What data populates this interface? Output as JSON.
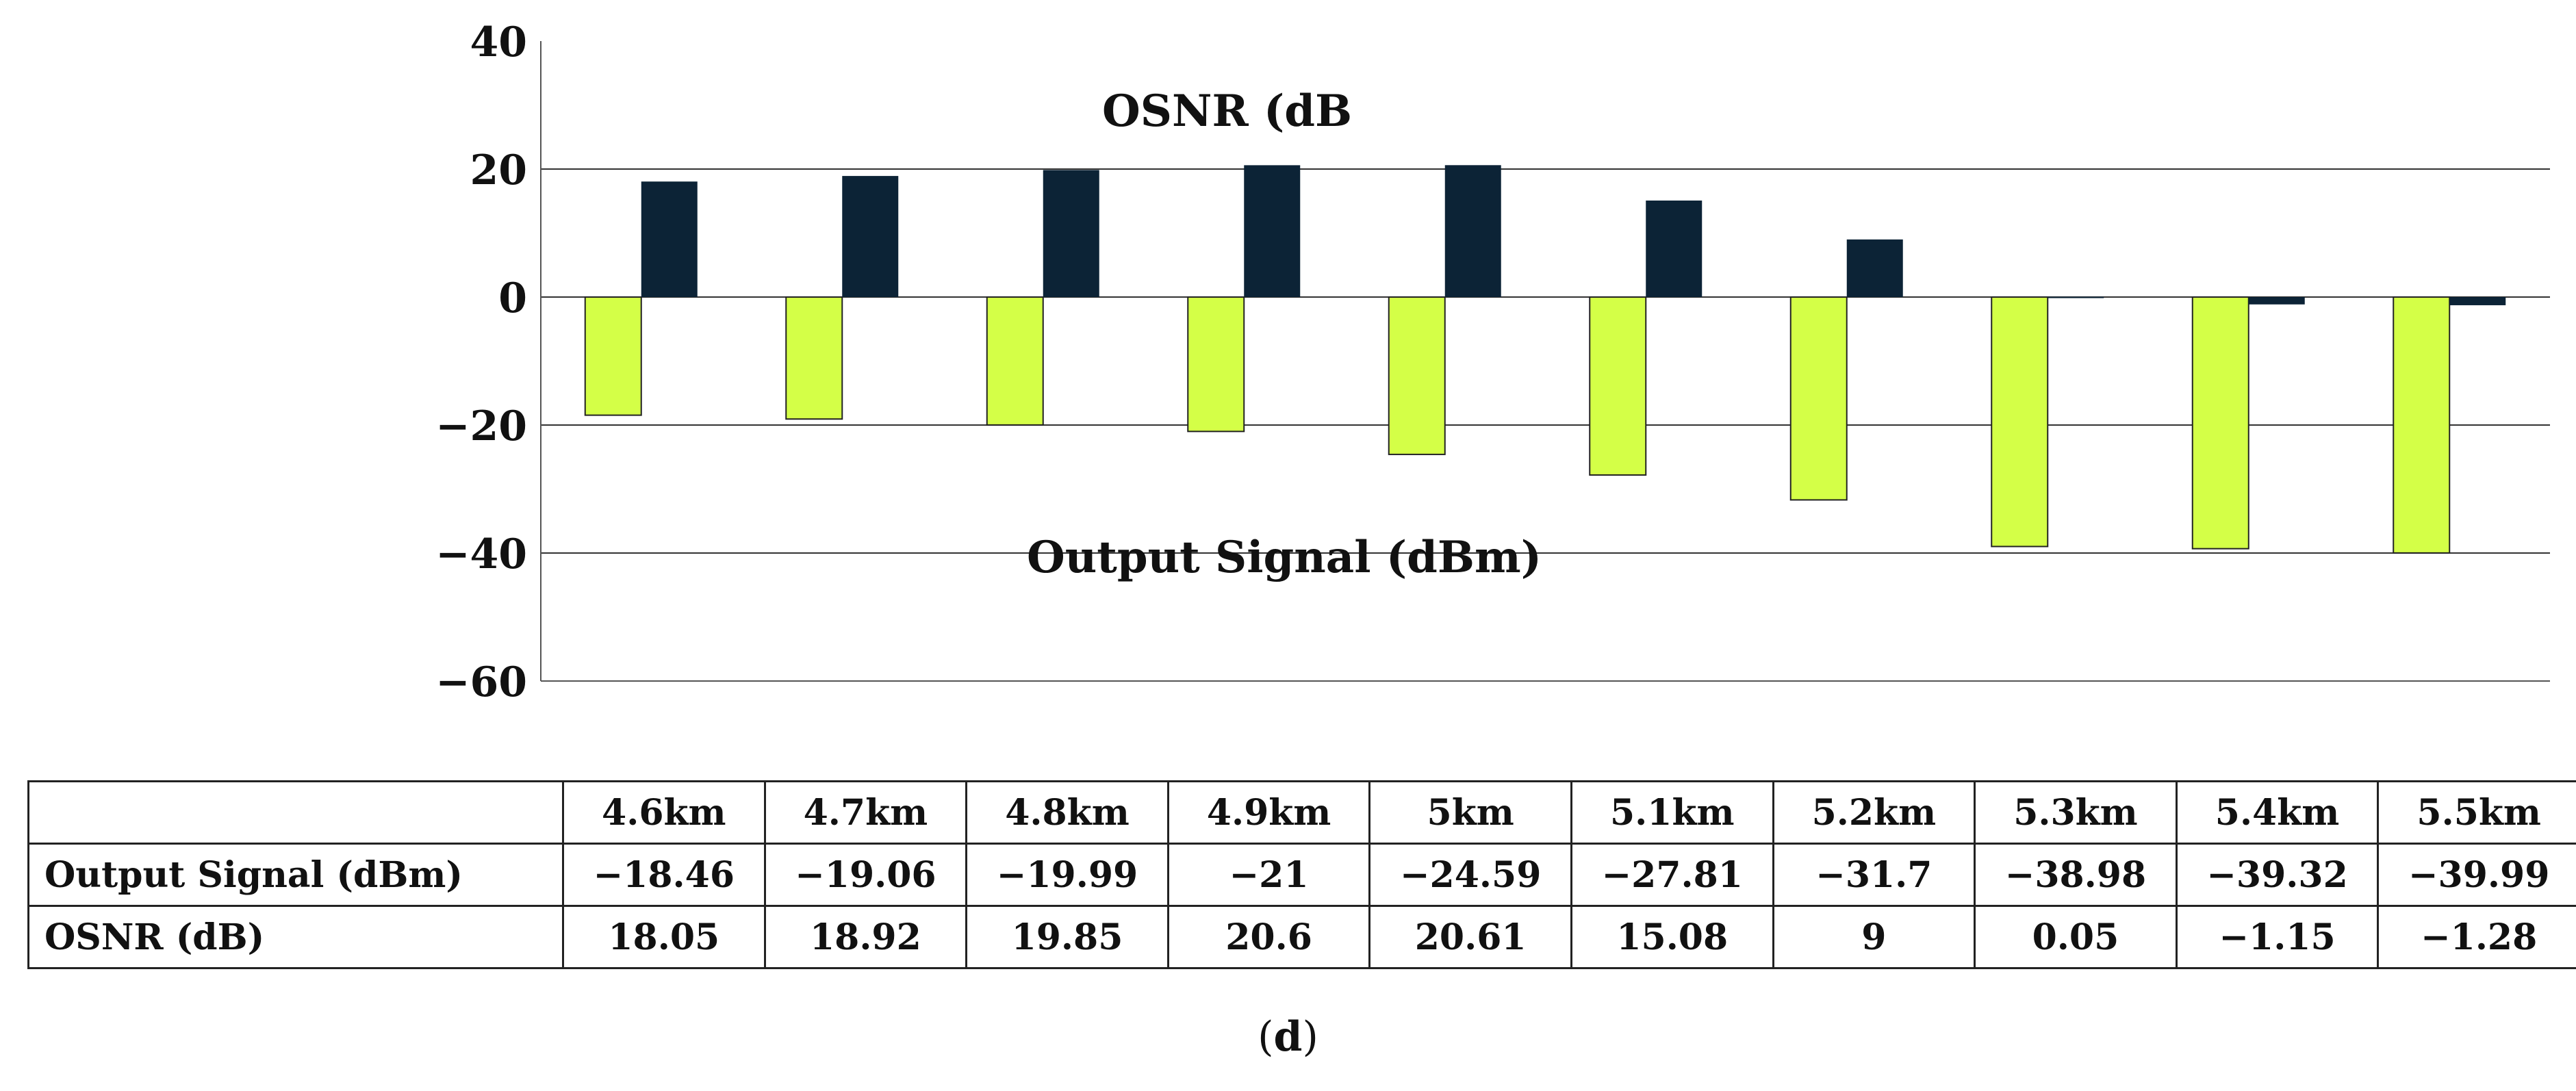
{
  "chart_data": {
    "type": "bar",
    "categories": [
      "4.6km",
      "4.7km",
      "4.8km",
      "4.9km",
      "5km",
      "5.1km",
      "5.2km",
      "5.3km",
      "5.4km",
      "5.5km"
    ],
    "series": [
      {
        "name": "Output Signal (dBm)",
        "color": "#d4ff47",
        "values": [
          -18.46,
          -19.06,
          -19.99,
          -21,
          -24.59,
          -27.81,
          -31.7,
          -38.98,
          -39.32,
          -39.99
        ]
      },
      {
        "name": "OSNR (dB)",
        "color": "#0c2336",
        "values": [
          18.05,
          18.92,
          19.85,
          20.6,
          20.61,
          15.08,
          9,
          0.05,
          -1.15,
          -1.28
        ]
      }
    ],
    "in_chart_labels": [
      "OSNR (dB",
      "Output Signal (dBm)"
    ],
    "y_ticks": [
      "40",
      "20",
      "0",
      "−20",
      "−40",
      "−60"
    ],
    "y_tick_values": [
      40,
      20,
      0,
      -20,
      -40,
      -60
    ],
    "ylim": [
      -60,
      40
    ],
    "grid": "horizontal",
    "legend": "none"
  },
  "table": {
    "corner": "",
    "header": [
      "4.6km",
      "4.7km",
      "4.8km",
      "4.9km",
      "5km",
      "5.1km",
      "5.2km",
      "5.3km",
      "5.4km",
      "5.5km"
    ],
    "rows": [
      {
        "label": "Output Signal (dBm)",
        "cells": [
          "−18.46",
          "−19.06",
          "−19.99",
          "−21",
          "−24.59",
          "−27.81",
          "−31.7",
          "−38.98",
          "−39.32",
          "−39.99"
        ]
      },
      {
        "label": "OSNR (dB)",
        "cells": [
          "18.05",
          "18.92",
          "19.85",
          "20.6",
          "20.61",
          "15.08",
          "9",
          "0.05",
          "−1.15",
          "−1.28"
        ]
      }
    ]
  },
  "panel_label": {
    "open": "(",
    "letter": "d",
    "close": ")"
  }
}
